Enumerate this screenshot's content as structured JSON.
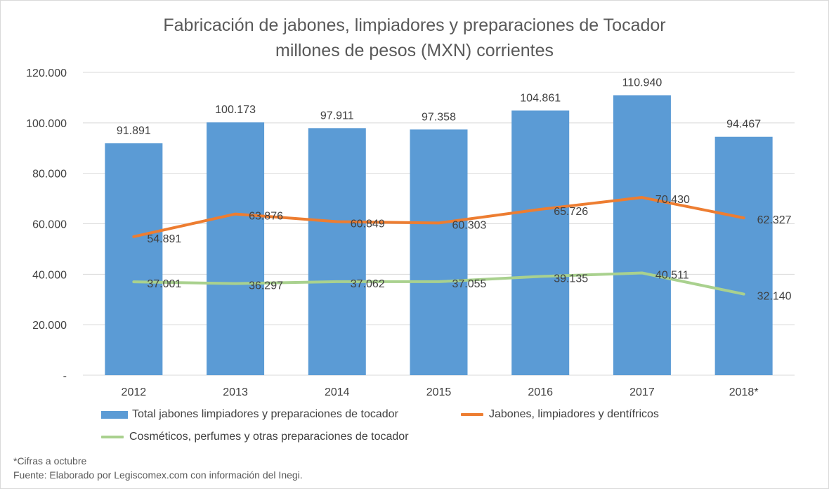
{
  "title_line1": "Fabricación de jabones, limpiadores y preparaciones de Tocador",
  "title_line2": "millones de pesos (MXN) corrientes",
  "footnote_1": "*Cifras a octubre",
  "footnote_2": "Fuente: Elaborado por Legiscomex.com con información del Inegi.",
  "colors": {
    "bar": "#5b9bd5",
    "line_orange": "#ed7d31",
    "line_green": "#a9d18e",
    "grid": "#d9d9d9",
    "text": "#404040"
  },
  "chart_data": {
    "type": "bar",
    "categories": [
      "2012",
      "2013",
      "2014",
      "2015",
      "2016",
      "2017",
      "2018*"
    ],
    "ylim": [
      0,
      120000
    ],
    "yticks": [
      0,
      20000,
      40000,
      60000,
      80000,
      100000,
      120000
    ],
    "ytick_labels": [
      "-",
      "20.000",
      "40.000",
      "60.000",
      "80.000",
      "100.000",
      "120.000"
    ],
    "grid": true,
    "legend_position": "bottom",
    "series": [
      {
        "name": "Total jabones limpiadores y preparaciones de tocador",
        "type": "bar",
        "values": [
          91891,
          100173,
          97911,
          97358,
          104861,
          110940,
          94467
        ],
        "labels": [
          "91.891",
          "100.173",
          "97.911",
          "97.358",
          "104.861",
          "110.940",
          "94.467"
        ]
      },
      {
        "name": "Jabones, limpiadores y dentífricos",
        "type": "line",
        "values": [
          54891,
          63876,
          60849,
          60303,
          65726,
          70430,
          62327
        ],
        "labels": [
          "54.891",
          "63.876",
          "60.849",
          "60.303",
          "65.726",
          "70.430",
          "62.327"
        ]
      },
      {
        "name": "Cosméticos, perfumes y otras preparaciones de tocador",
        "type": "line",
        "values": [
          37001,
          36297,
          37062,
          37055,
          39135,
          40511,
          32140
        ],
        "labels": [
          "37.001",
          "36.297",
          "37.062",
          "37.055",
          "39.135",
          "40.511",
          "32.140"
        ]
      }
    ]
  }
}
